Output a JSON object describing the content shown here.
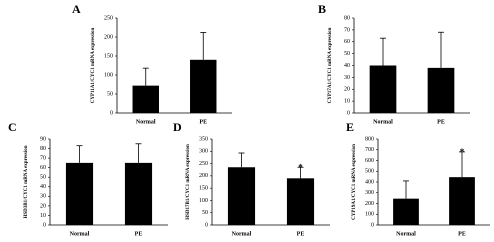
{
  "chart_data": [
    {
      "type": "bar",
      "title": "A",
      "ylabel": "CYP11A1/CYC1 mRNA expression",
      "categories": [
        "Normal",
        "PE"
      ],
      "values": [
        72,
        140
      ],
      "errors": [
        46,
        72
      ],
      "color": "#000000",
      "ylim": [
        0,
        250
      ],
      "yticks": [
        0,
        50,
        100,
        150,
        200,
        250
      ]
    },
    {
      "type": "bar",
      "title": "B",
      "ylabel": "CYP17A1/CYC1 mRNA expression",
      "categories": [
        "Normal",
        "PE"
      ],
      "values": [
        40,
        38
      ],
      "errors": [
        23,
        30
      ],
      "color": "#000000",
      "ylim": [
        0,
        80
      ],
      "yticks": [
        0,
        10,
        20,
        30,
        40,
        50,
        60,
        70,
        80
      ]
    },
    {
      "type": "bar",
      "title": "C",
      "ylabel": "HSD3B1/CYC1 mRNA expression",
      "categories": [
        "Normal",
        "PE"
      ],
      "values": [
        65,
        65
      ],
      "errors": [
        18,
        20
      ],
      "color": "#000000",
      "ylim": [
        0,
        90
      ],
      "yticks": [
        0,
        10,
        20,
        30,
        40,
        50,
        60,
        70,
        80,
        90
      ]
    },
    {
      "type": "bar",
      "title": "D",
      "ylabel": "HSD17B1/CYC1 mRNA expression",
      "categories": [
        "Normal",
        "PE"
      ],
      "values": [
        235,
        190
      ],
      "errors": [
        58,
        45
      ],
      "color": "#000000",
      "ylim": [
        0,
        350
      ],
      "yticks": [
        0,
        50,
        100,
        150,
        200,
        250,
        300,
        350
      ],
      "annotations": [
        null,
        "*"
      ]
    },
    {
      "type": "bar",
      "title": "E",
      "ylabel": "CYP19A1/CYC1 mRNA expression",
      "categories": [
        "Normal",
        "PE"
      ],
      "values": [
        245,
        445
      ],
      "errors": [
        165,
        235
      ],
      "color": "#000000",
      "ylim": [
        0,
        800
      ],
      "yticks": [
        0,
        100,
        200,
        300,
        400,
        500,
        600,
        700,
        800
      ],
      "annotations": [
        null,
        "*"
      ]
    }
  ]
}
